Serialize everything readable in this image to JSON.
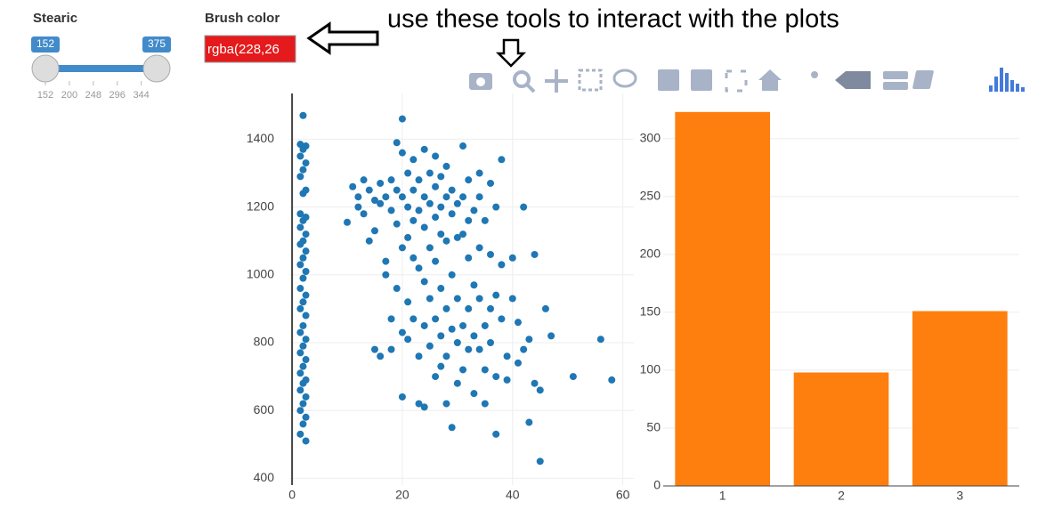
{
  "controls": {
    "slider": {
      "label": "Stearic",
      "min": 152,
      "max": 375,
      "value": [
        152,
        375
      ],
      "ticks": [
        152,
        200,
        248,
        296,
        344
      ]
    },
    "color_input": {
      "label": "Brush color",
      "value": "rgba(228,26"
    }
  },
  "annotation": "use these tools to interact with the plots",
  "chart_data": [
    {
      "type": "scatter",
      "color": "#1f77b4",
      "grid": true,
      "xlim": [
        -0.5,
        62
      ],
      "ylim": [
        380,
        1535
      ],
      "xticks": [
        0,
        20,
        40,
        60
      ],
      "yticks": [
        400,
        600,
        800,
        1000,
        1200,
        1400
      ],
      "x": [
        2,
        1.5,
        2.5,
        2,
        1.5,
        2.5,
        2,
        1.5,
        2.5,
        2,
        1.5,
        2.5,
        2,
        1.5,
        2.5,
        2,
        1.5,
        2.5,
        2,
        1.5,
        2.5,
        2,
        1.5,
        2.5,
        2,
        1.5,
        2.5,
        2,
        1.5,
        2.5,
        2,
        1.5,
        2.5,
        2,
        1.5,
        2.5,
        2,
        1.5,
        2.5,
        2,
        1.5,
        2.5,
        2,
        1.5,
        2.5,
        10,
        11,
        12,
        12,
        13,
        13,
        14,
        14,
        15,
        15,
        15,
        16,
        16,
        16,
        17,
        17,
        17,
        18,
        18,
        18,
        18,
        19,
        19,
        19,
        19,
        20,
        20,
        20,
        20,
        20,
        20,
        21,
        21,
        21,
        21,
        21,
        22,
        22,
        22,
        22,
        22,
        23,
        23,
        23,
        23,
        23,
        24,
        24,
        24,
        24,
        24,
        24,
        25,
        25,
        25,
        25,
        25,
        26,
        26,
        26,
        26,
        26,
        26,
        27,
        27,
        27,
        27,
        27,
        27,
        28,
        28,
        28,
        28,
        28,
        28,
        29,
        29,
        29,
        29,
        29,
        30,
        30,
        30,
        30,
        30,
        31,
        31,
        31,
        31,
        31,
        32,
        32,
        32,
        32,
        32,
        33,
        33,
        33,
        33,
        34,
        34,
        34,
        34,
        34,
        35,
        35,
        35,
        35,
        36,
        36,
        36,
        36,
        37,
        37,
        37,
        37,
        38,
        38,
        38,
        39,
        39,
        40,
        40,
        41,
        41,
        42,
        42,
        43,
        43,
        44,
        44,
        45,
        45,
        46,
        47,
        51,
        56,
        58
      ],
      "values": [
        1470,
        1385,
        1380,
        1370,
        1350,
        1330,
        1310,
        1290,
        1250,
        1240,
        1180,
        1170,
        1160,
        1140,
        1120,
        1100,
        1090,
        1070,
        1050,
        1030,
        1010,
        990,
        960,
        940,
        920,
        900,
        880,
        850,
        830,
        810,
        790,
        770,
        750,
        730,
        710,
        690,
        680,
        660,
        640,
        620,
        600,
        580,
        560,
        530,
        510,
        1155,
        1260,
        1230,
        1200,
        1280,
        1180,
        1250,
        1100,
        1220,
        1130,
        780,
        1270,
        1210,
        760,
        1230,
        1040,
        1000,
        1280,
        1190,
        870,
        780,
        1390,
        1250,
        1150,
        960,
        1460,
        1360,
        1230,
        1080,
        830,
        640,
        1300,
        1200,
        1110,
        920,
        810,
        1340,
        1250,
        1160,
        1050,
        870,
        1280,
        1190,
        1020,
        760,
        620,
        1370,
        1230,
        1140,
        980,
        850,
        610,
        1300,
        1210,
        1080,
        930,
        790,
        1350,
        1260,
        1170,
        1040,
        870,
        700,
        1290,
        1200,
        1120,
        960,
        820,
        730,
        1320,
        1230,
        1100,
        900,
        760,
        620,
        1250,
        1180,
        1000,
        840,
        550,
        1210,
        1110,
        930,
        800,
        680,
        1380,
        1230,
        1120,
        850,
        720,
        1280,
        1160,
        1050,
        900,
        780,
        1190,
        970,
        820,
        650,
        1300,
        1230,
        1080,
        930,
        780,
        1160,
        850,
        720,
        620,
        1270,
        1060,
        900,
        800,
        1200,
        940,
        700,
        530,
        1340,
        1030,
        870,
        760,
        690,
        1050,
        930,
        860,
        740,
        1200,
        780,
        810,
        565,
        1060,
        680,
        450,
        660,
        900,
        820,
        700,
        810,
        690
      ]
    },
    {
      "type": "bar",
      "color": "#ff7f0e",
      "grid": true,
      "categories": [
        "1",
        "2",
        "3"
      ],
      "values": [
        323,
        98,
        151
      ],
      "ylim": [
        0,
        339
      ],
      "yticks": [
        0,
        50,
        100,
        150,
        200,
        250,
        300
      ]
    }
  ]
}
